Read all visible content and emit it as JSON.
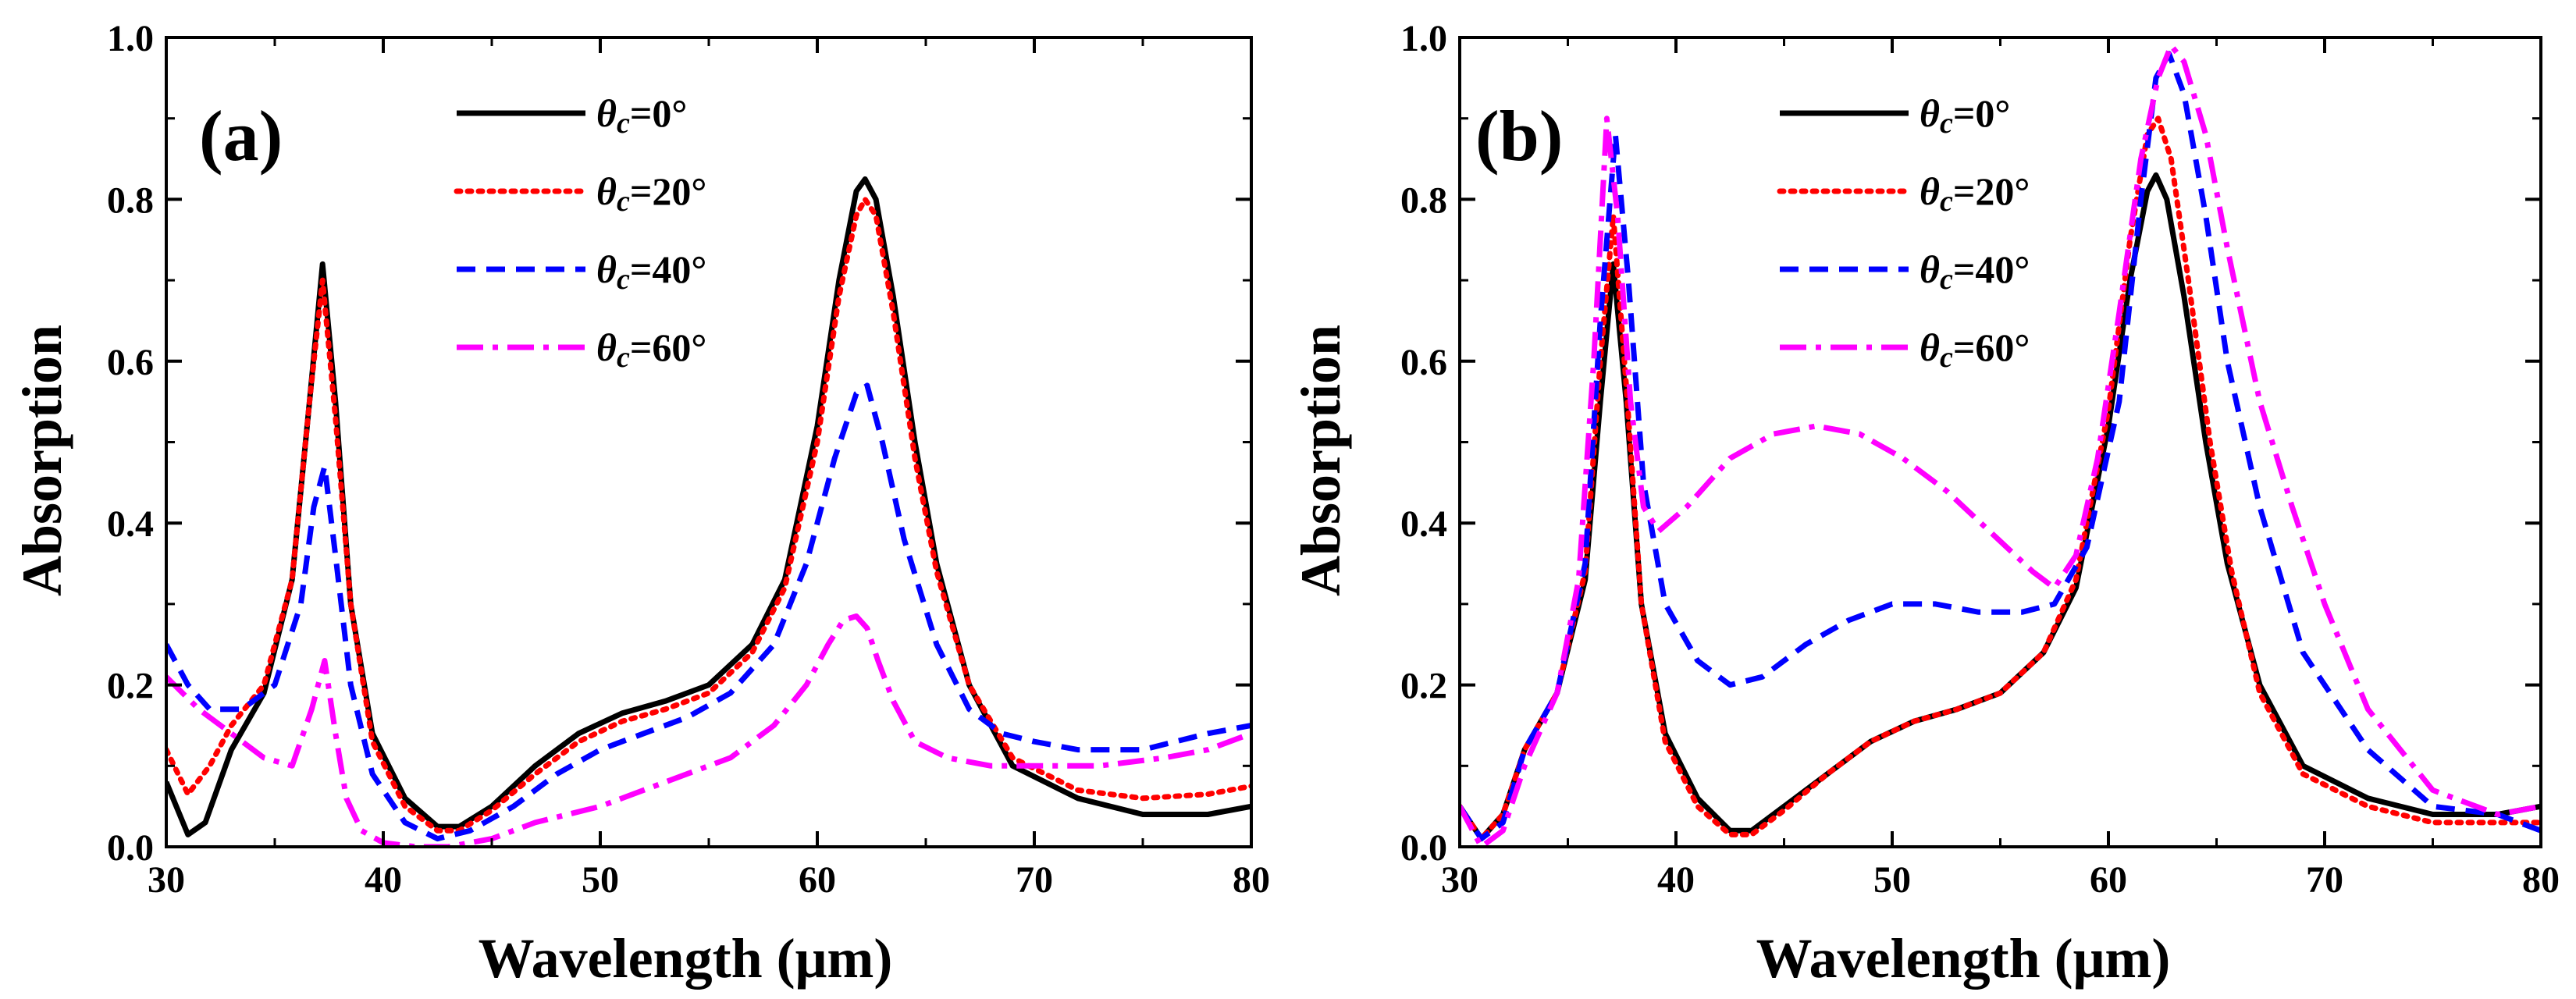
{
  "chart_data": [
    {
      "type": "line",
      "panel_label": "(a)",
      "xlabel": "Wavelength (μm)",
      "ylabel": "Absorption",
      "xlim": [
        30,
        80
      ],
      "ylim": [
        0,
        1.0
      ],
      "xticks": [
        30,
        40,
        50,
        60,
        70,
        80
      ],
      "xtick_labels": [
        "30",
        "40",
        "50",
        "60",
        "70",
        "80"
      ],
      "yticks": [
        0,
        0.2,
        0.4,
        0.6,
        0.8,
        1.0
      ],
      "ytick_labels": [
        "0.0",
        "0.2",
        "0.4",
        "0.6",
        "0.8",
        "1.0"
      ],
      "legend_position": "upper-left",
      "series": [
        {
          "name": "θc=0°",
          "sym": "θ",
          "sub": "c",
          "value_text": "=0°",
          "color": "#000000",
          "dash": "solid",
          "x": [
            30,
            31,
            31.8,
            33,
            34.5,
            35.8,
            36.6,
            37.2,
            37.8,
            38.5,
            39.5,
            41,
            42.5,
            43.5,
            45,
            47,
            49,
            51,
            53,
            55,
            57,
            58.5,
            60,
            61,
            61.8,
            62.2,
            62.7,
            63.5,
            64.5,
            65.5,
            67,
            69,
            72,
            75,
            78,
            80
          ],
          "y": [
            0.08,
            0.015,
            0.03,
            0.12,
            0.19,
            0.33,
            0.55,
            0.72,
            0.55,
            0.3,
            0.14,
            0.06,
            0.025,
            0.025,
            0.05,
            0.1,
            0.14,
            0.165,
            0.18,
            0.2,
            0.25,
            0.33,
            0.52,
            0.7,
            0.81,
            0.825,
            0.8,
            0.68,
            0.5,
            0.35,
            0.2,
            0.1,
            0.06,
            0.04,
            0.04,
            0.05
          ]
        },
        {
          "name": "θc=20°",
          "sym": "θ",
          "sub": "c",
          "value_text": "=20°",
          "color": "#ff0000",
          "dash": "dotted",
          "x": [
            30,
            31,
            32,
            33,
            34.5,
            35.8,
            36.6,
            37.2,
            37.8,
            38.5,
            39.5,
            41,
            42.5,
            43.5,
            45,
            47,
            49,
            51,
            53,
            55,
            57,
            58.5,
            60,
            61,
            61.8,
            62.2,
            62.7,
            63.5,
            64.5,
            65.5,
            67,
            69,
            72,
            75,
            78,
            80
          ],
          "y": [
            0.12,
            0.065,
            0.1,
            0.15,
            0.2,
            0.33,
            0.55,
            0.7,
            0.53,
            0.3,
            0.13,
            0.05,
            0.02,
            0.02,
            0.045,
            0.09,
            0.13,
            0.155,
            0.17,
            0.19,
            0.24,
            0.32,
            0.5,
            0.68,
            0.78,
            0.8,
            0.78,
            0.66,
            0.48,
            0.34,
            0.2,
            0.11,
            0.07,
            0.06,
            0.065,
            0.075
          ]
        },
        {
          "name": "θc=40°",
          "sym": "θ",
          "sub": "c",
          "value_text": "=40°",
          "color": "#0000ff",
          "dash": "dashed",
          "x": [
            30,
            31,
            32,
            33.5,
            35,
            36.2,
            36.8,
            37.3,
            37.8,
            38.5,
            39.5,
            41,
            42.5,
            44,
            46,
            48,
            50,
            52,
            54,
            56,
            58,
            59.5,
            60.8,
            61.8,
            62.3,
            63,
            64,
            65.5,
            67,
            68.5,
            70,
            72,
            75,
            78,
            80
          ],
          "y": [
            0.25,
            0.2,
            0.17,
            0.17,
            0.2,
            0.3,
            0.42,
            0.47,
            0.36,
            0.2,
            0.09,
            0.03,
            0.01,
            0.02,
            0.05,
            0.09,
            0.12,
            0.14,
            0.16,
            0.19,
            0.25,
            0.35,
            0.48,
            0.56,
            0.57,
            0.5,
            0.38,
            0.25,
            0.17,
            0.14,
            0.13,
            0.12,
            0.12,
            0.14,
            0.15
          ]
        },
        {
          "name": "θc=60°",
          "sym": "θ",
          "sub": "c",
          "value_text": "=60°",
          "color": "#ff00ff",
          "dash": "dashdot",
          "x": [
            30,
            31.5,
            33,
            34.5,
            35.8,
            36.7,
            37.3,
            37.8,
            38.3,
            39,
            40,
            41.5,
            43,
            45,
            47,
            50,
            53,
            56,
            58,
            59.5,
            60.5,
            61.2,
            61.8,
            62.3,
            62.8,
            63.5,
            64.5,
            66,
            68,
            70,
            73,
            76,
            78,
            80
          ],
          "y": [
            0.21,
            0.17,
            0.14,
            0.11,
            0.1,
            0.17,
            0.23,
            0.14,
            0.06,
            0.02,
            0.005,
            0.0,
            0.0,
            0.01,
            0.03,
            0.05,
            0.08,
            0.11,
            0.15,
            0.2,
            0.25,
            0.28,
            0.285,
            0.27,
            0.23,
            0.18,
            0.13,
            0.11,
            0.1,
            0.1,
            0.1,
            0.11,
            0.12,
            0.14
          ]
        }
      ]
    },
    {
      "type": "line",
      "panel_label": "(b)",
      "xlabel": "Wavelength (μm)",
      "ylabel": "Absorption",
      "xlim": [
        30,
        80
      ],
      "ylim": [
        0,
        1.0
      ],
      "xticks": [
        30,
        40,
        50,
        60,
        70,
        80
      ],
      "xtick_labels": [
        "30",
        "40",
        "50",
        "60",
        "70",
        "80"
      ],
      "yticks": [
        0,
        0.2,
        0.4,
        0.6,
        0.8,
        1.0
      ],
      "ytick_labels": [
        "0.0",
        "0.2",
        "0.4",
        "0.6",
        "0.8",
        "1.0"
      ],
      "legend_position": "upper-center",
      "series": [
        {
          "name": "θc=0°",
          "sym": "θ",
          "sub": "c",
          "value_text": "=0°",
          "color": "#000000",
          "dash": "solid",
          "x": [
            30,
            31,
            32,
            33,
            34.5,
            35.8,
            36.5,
            37.1,
            37.7,
            38.4,
            39.5,
            41,
            42.5,
            43.5,
            45,
            47,
            49,
            51,
            53,
            55,
            57,
            58.5,
            60,
            61,
            61.8,
            62.2,
            62.7,
            63.5,
            64.5,
            65.5,
            67,
            69,
            72,
            75,
            78,
            80
          ],
          "y": [
            0.05,
            0.01,
            0.04,
            0.12,
            0.19,
            0.33,
            0.55,
            0.72,
            0.55,
            0.3,
            0.14,
            0.06,
            0.02,
            0.02,
            0.05,
            0.09,
            0.13,
            0.155,
            0.17,
            0.19,
            0.24,
            0.32,
            0.52,
            0.7,
            0.81,
            0.83,
            0.8,
            0.68,
            0.5,
            0.35,
            0.2,
            0.1,
            0.06,
            0.04,
            0.04,
            0.05
          ]
        },
        {
          "name": "θc=20°",
          "sym": "θ",
          "sub": "c",
          "value_text": "=20°",
          "color": "#ff0000",
          "dash": "dotted",
          "x": [
            30,
            31,
            32,
            33,
            34.5,
            35.8,
            36.5,
            37.1,
            37.7,
            38.4,
            39.5,
            41,
            42.5,
            43.5,
            45,
            47,
            49,
            51,
            53,
            55,
            57,
            58.5,
            60,
            61,
            61.8,
            62.3,
            62.9,
            63.7,
            64.7,
            65.7,
            67,
            69,
            72,
            75,
            78,
            80
          ],
          "y": [
            0.05,
            0.01,
            0.04,
            0.12,
            0.19,
            0.34,
            0.6,
            0.78,
            0.57,
            0.3,
            0.13,
            0.05,
            0.015,
            0.015,
            0.045,
            0.09,
            0.13,
            0.155,
            0.17,
            0.19,
            0.24,
            0.33,
            0.54,
            0.75,
            0.88,
            0.9,
            0.85,
            0.7,
            0.5,
            0.34,
            0.19,
            0.09,
            0.05,
            0.03,
            0.03,
            0.03
          ]
        },
        {
          "name": "θc=40°",
          "sym": "θ",
          "sub": "c",
          "value_text": "=40°",
          "color": "#0000ff",
          "dash": "dashed",
          "x": [
            30,
            31,
            32,
            33,
            34.5,
            35.8,
            36.5,
            37.2,
            37.8,
            38.5,
            39.5,
            41,
            42.5,
            44,
            46,
            48,
            50,
            52,
            54,
            56,
            57.5,
            59,
            60.5,
            61.5,
            62.2,
            62.8,
            63.5,
            64.5,
            65.5,
            67,
            69,
            72,
            75,
            78,
            80
          ],
          "y": [
            0.05,
            0.01,
            0.03,
            0.12,
            0.19,
            0.35,
            0.65,
            0.88,
            0.7,
            0.45,
            0.3,
            0.23,
            0.2,
            0.21,
            0.25,
            0.28,
            0.3,
            0.3,
            0.29,
            0.29,
            0.3,
            0.37,
            0.55,
            0.8,
            0.95,
            0.98,
            0.93,
            0.78,
            0.6,
            0.42,
            0.24,
            0.12,
            0.05,
            0.04,
            0.02
          ]
        },
        {
          "name": "θc=60°",
          "sym": "θ",
          "sub": "c",
          "value_text": "=60°",
          "color": "#ff00ff",
          "dash": "dashdot",
          "x": [
            30,
            31,
            32,
            33,
            34.5,
            35.5,
            36.2,
            36.8,
            37.3,
            37.9,
            38.5,
            39.2,
            40.5,
            42.5,
            44.5,
            46.5,
            48.5,
            50.5,
            52.5,
            54.5,
            56.5,
            57.5,
            58.5,
            59.5,
            60.5,
            61.5,
            62.3,
            62.9,
            63.5,
            64.5,
            65.5,
            67,
            68.5,
            70,
            72,
            75,
            78,
            80
          ],
          "y": [
            0.05,
            0.0,
            0.02,
            0.1,
            0.19,
            0.33,
            0.6,
            0.9,
            0.78,
            0.55,
            0.42,
            0.39,
            0.42,
            0.48,
            0.51,
            0.52,
            0.51,
            0.48,
            0.44,
            0.39,
            0.34,
            0.32,
            0.36,
            0.48,
            0.66,
            0.85,
            0.95,
            0.99,
            0.97,
            0.88,
            0.74,
            0.55,
            0.42,
            0.3,
            0.17,
            0.07,
            0.04,
            0.05
          ]
        }
      ]
    }
  ]
}
